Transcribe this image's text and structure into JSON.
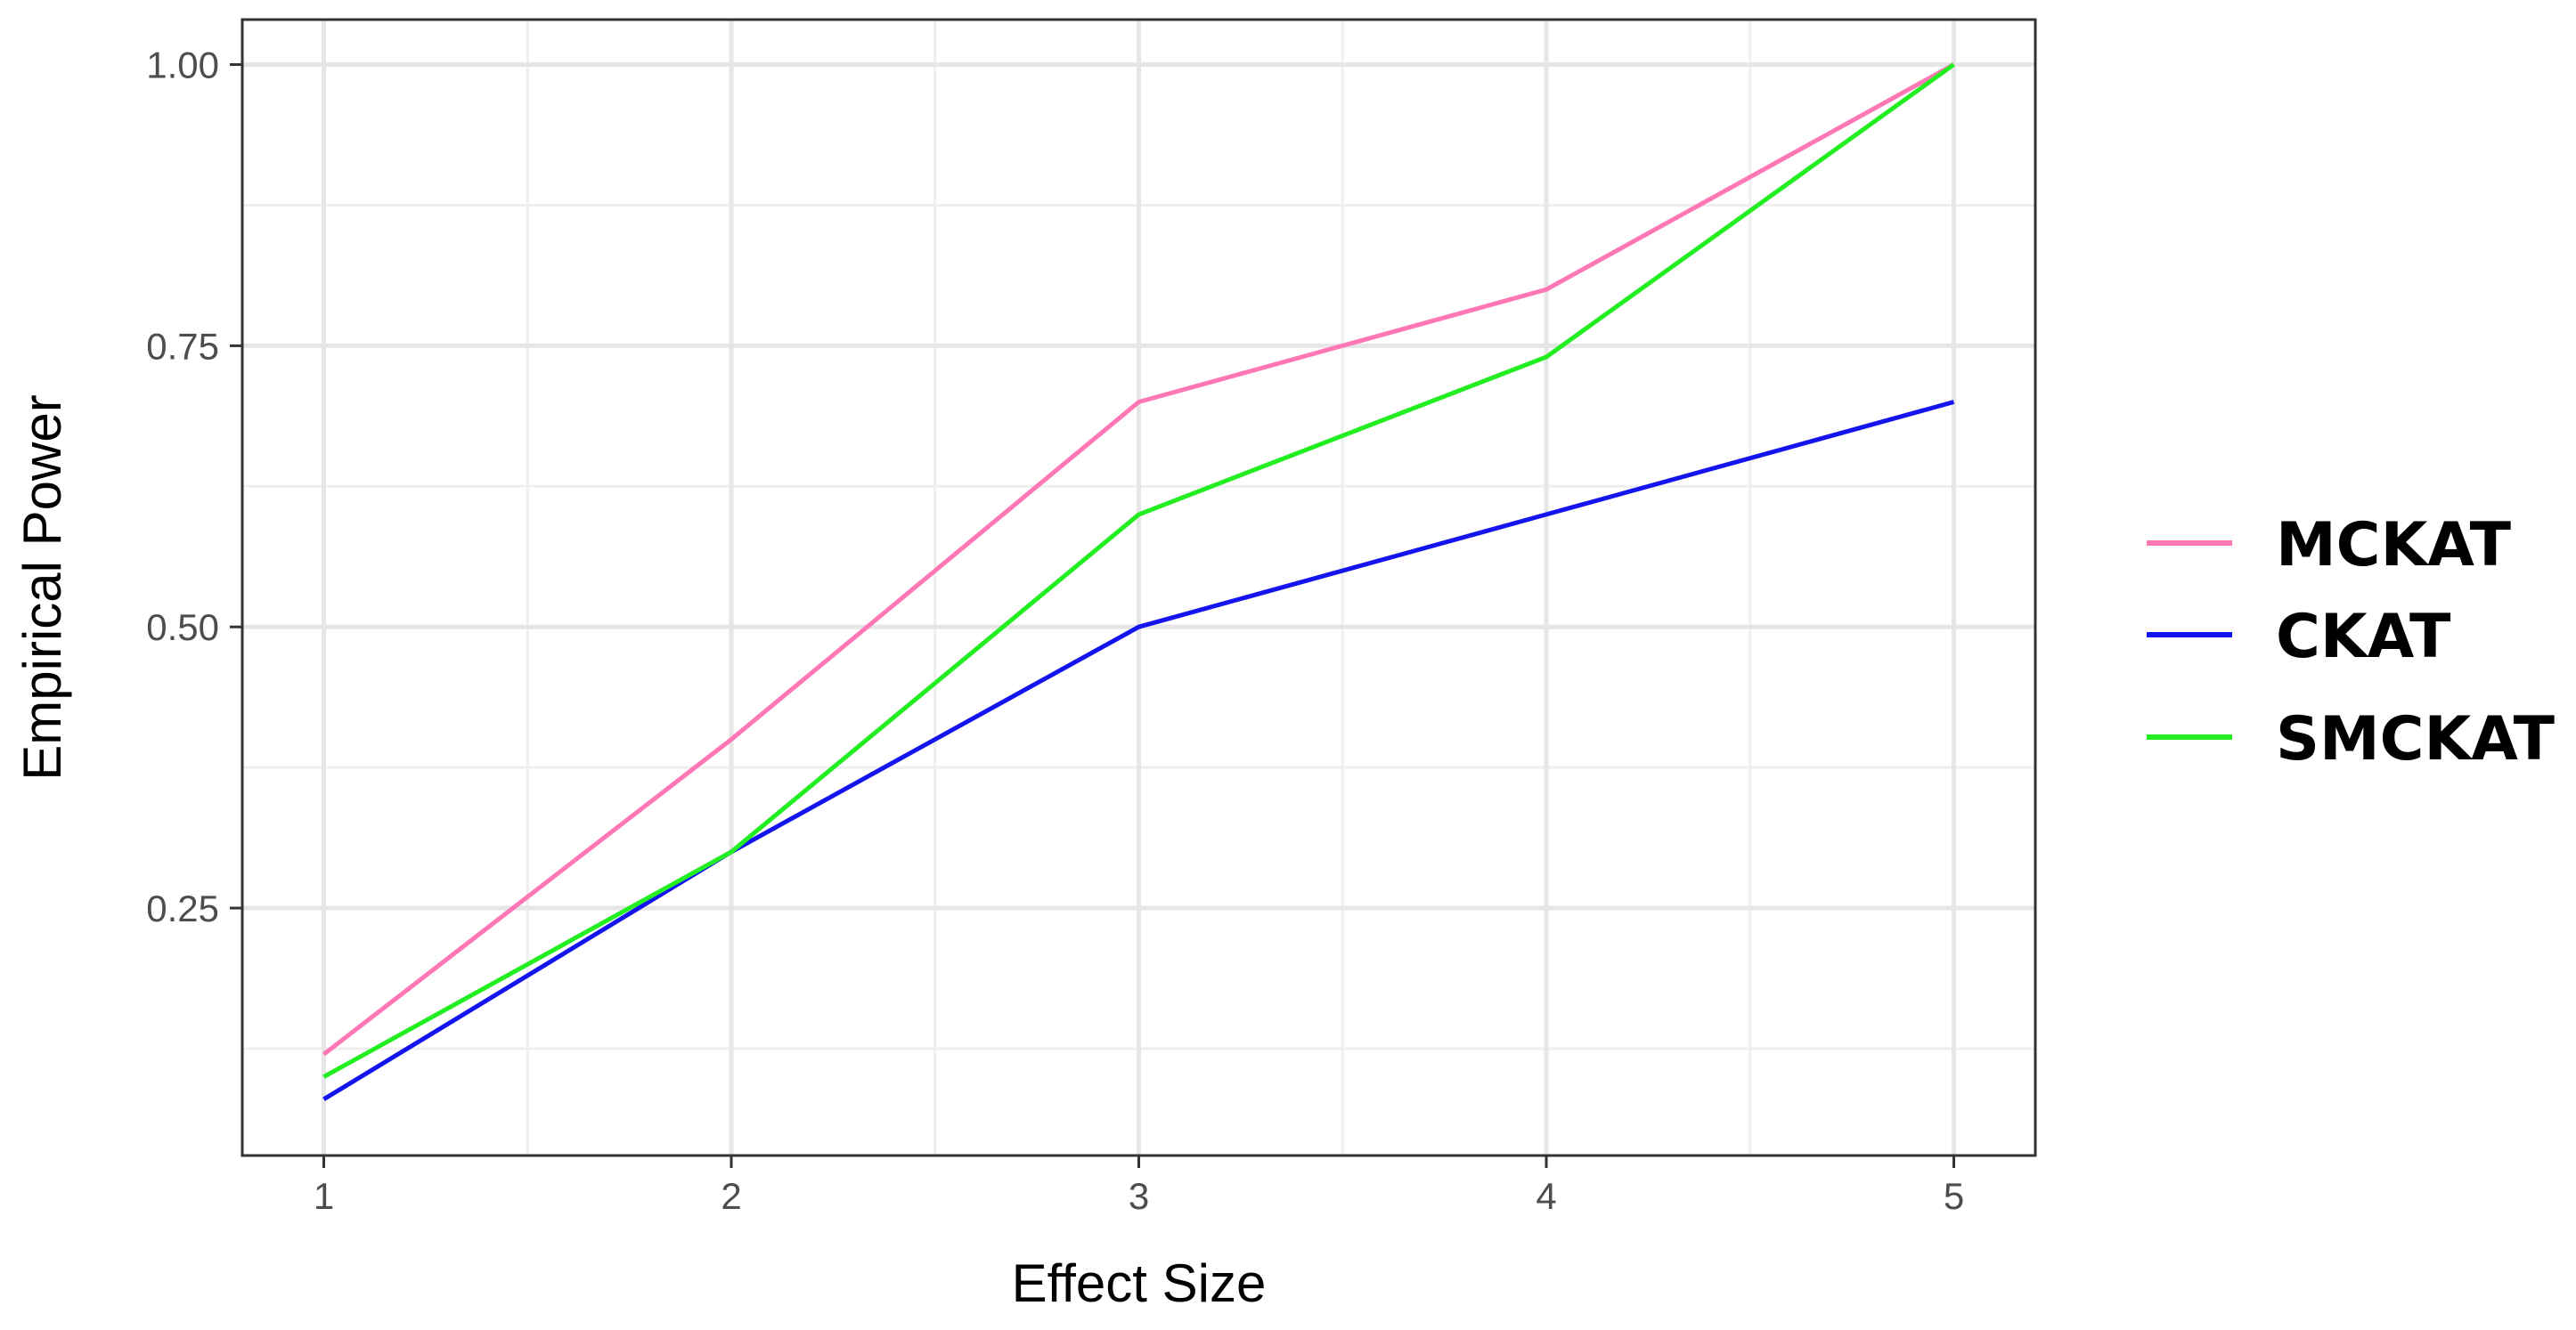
{
  "chart_data": {
    "type": "line",
    "xlabel": "Effect Size",
    "ylabel": "Empirical Power",
    "x": [
      1,
      2,
      3,
      4,
      5
    ],
    "x_ticks": [
      "1",
      "2",
      "3",
      "4",
      "5"
    ],
    "y_ticks": [
      "0.25",
      "0.50",
      "0.75",
      "1.00"
    ],
    "y_tick_values": [
      0.25,
      0.5,
      0.75,
      1.0
    ],
    "xlim": [
      0.8,
      5.2
    ],
    "ylim": [
      0.03,
      1.04
    ],
    "grid": true,
    "legend_position": "right",
    "series": [
      {
        "name": "MCKAT",
        "color": "#ff77b4",
        "values": [
          0.12,
          0.4,
          0.7,
          0.8,
          1.0
        ]
      },
      {
        "name": "CKAT",
        "color": "#1414ee",
        "values": [
          0.08,
          0.3,
          0.5,
          0.6,
          0.7
        ]
      },
      {
        "name": "SMCKAT",
        "color": "#22ee22",
        "values": [
          0.1,
          0.3,
          0.6,
          0.74,
          1.0
        ]
      }
    ]
  }
}
